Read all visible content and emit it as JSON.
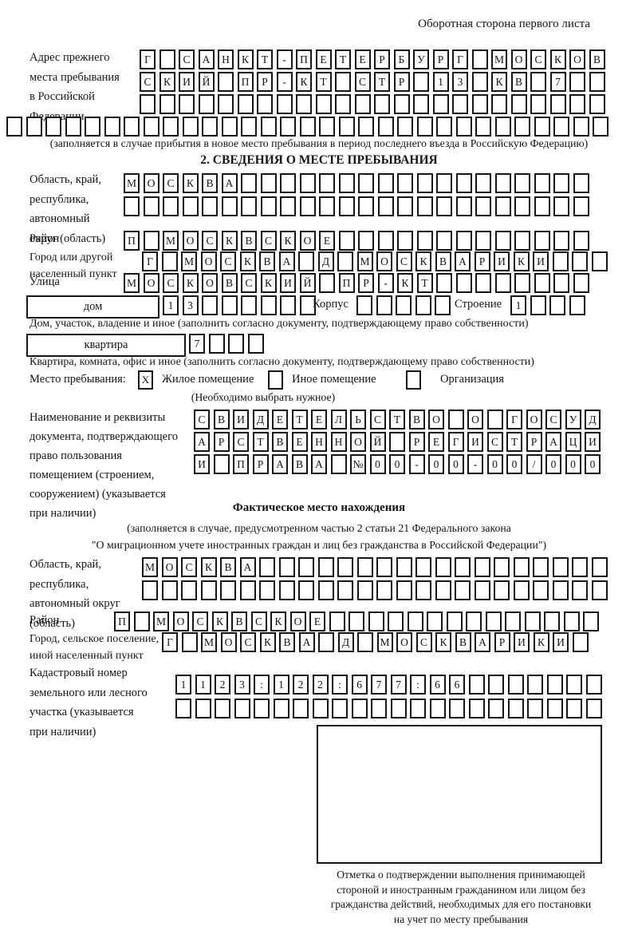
{
  "ink_color": "#151515",
  "header": {
    "note": "Оборотная сторона первого листа"
  },
  "prev_address": {
    "label_lines": [
      "Адрес прежнего",
      "места пребывания",
      "в Российской",
      "Федерации"
    ],
    "row1": [
      "Г",
      "",
      "С",
      "А",
      "Н",
      "К",
      "Т",
      "-",
      "П",
      "Е",
      "Т",
      "Е",
      "Р",
      "Б",
      "У",
      "Р",
      "Г",
      "",
      "М",
      "О",
      "С",
      "К",
      "О",
      "В"
    ],
    "row2": [
      "С",
      "К",
      "И",
      "Й",
      "",
      "П",
      "Р",
      "-",
      "К",
      "Т",
      "",
      "С",
      "Т",
      "Р",
      "",
      "1",
      "3",
      "",
      "К",
      "В",
      "",
      "7",
      "",
      ""
    ],
    "row3": [
      "",
      "",
      "",
      "",
      "",
      "",
      "",
      "",
      "",
      "",
      "",
      "",
      "",
      "",
      "",
      "",
      "",
      "",
      "",
      "",
      "",
      "",
      "",
      ""
    ],
    "row4": [
      "",
      "",
      "",
      "",
      "",
      "",
      "",
      "",
      "",
      "",
      "",
      "",
      "",
      "",
      "",
      "",
      "",
      "",
      "",
      "",
      "",
      "",
      "",
      "",
      "",
      "",
      "",
      "",
      "",
      "",
      ""
    ],
    "note": "(заполняется в случае прибытия в новое место пребывания в период последнего въезда в Российскую Федерацию)"
  },
  "section2": {
    "title": "2. СВЕДЕНИЯ О МЕСТЕ ПРЕБЫВАНИЯ",
    "region": {
      "label_lines": [
        "Область, край,",
        "республика,",
        "автономный",
        "округ (область)"
      ],
      "row1": [
        "М",
        "О",
        "С",
        "К",
        "В",
        "А",
        "",
        "",
        "",
        "",
        "",
        "",
        "",
        "",
        "",
        "",
        "",
        "",
        "",
        "",
        "",
        "",
        "",
        ""
      ],
      "row2": [
        "",
        "",
        "",
        "",
        "",
        "",
        "",
        "",
        "",
        "",
        "",
        "",
        "",
        "",
        "",
        "",
        "",
        "",
        "",
        "",
        "",
        "",
        "",
        ""
      ]
    },
    "district": {
      "label": "Район",
      "row": [
        "П",
        "",
        "М",
        "О",
        "С",
        "К",
        "В",
        "С",
        "К",
        "О",
        "Е",
        "",
        "",
        "",
        "",
        "",
        "",
        "",
        "",
        "",
        "",
        "",
        "",
        ""
      ]
    },
    "city": {
      "label_lines": [
        "Город или другой",
        "населенный пункт"
      ],
      "row": [
        "Г",
        "",
        "М",
        "О",
        "С",
        "К",
        "В",
        "А",
        "",
        "Д",
        "",
        "М",
        "О",
        "С",
        "К",
        "В",
        "А",
        "Р",
        "И",
        "К",
        "И",
        "",
        "",
        ""
      ]
    },
    "street": {
      "label": "Улица",
      "row": [
        "М",
        "О",
        "С",
        "К",
        "О",
        "В",
        "С",
        "К",
        "И",
        "Й",
        "",
        "П",
        "Р",
        "-",
        "К",
        "Т",
        "",
        "",
        "",
        "",
        "",
        "",
        "",
        ""
      ]
    },
    "house": {
      "box_label": "дом",
      "row": [
        "1",
        "3",
        "",
        "",
        "",
        "",
        "",
        ""
      ],
      "korpus_label": "Корпус",
      "korpus_row": [
        "",
        "",
        "",
        "",
        ""
      ],
      "stroenie_label": "Строение",
      "stroenie_row": [
        "1",
        "",
        "",
        ""
      ],
      "note": "Дом, участок, владение и иное (заполнить согласно документу, подтверждающему право собственности)"
    },
    "apartment": {
      "box_label": "квартира",
      "row": [
        "7",
        "",
        "",
        ""
      ],
      "note": "Квартира, комната, офис и иное (заполнить согласно документу, подтверждающему право собственности)"
    },
    "stay_place": {
      "label": "Место пребывания:",
      "options": [
        {
          "label": "Жилое помещение",
          "mark": "X"
        },
        {
          "label": "Иное помещение",
          "mark": ""
        },
        {
          "label": "Организация",
          "mark": ""
        }
      ],
      "note": "(Необходимо выбрать нужное)"
    },
    "doc": {
      "label_lines": [
        "Наименование и реквизиты",
        "документа, подтверждающего",
        "право пользования",
        "помещением (строением,",
        "сооружением) (указывается",
        "при наличии)"
      ],
      "row1": [
        "С",
        "В",
        "И",
        "Д",
        "Е",
        "Т",
        "Е",
        "Л",
        "Ь",
        "С",
        "Т",
        "В",
        "О",
        "",
        "О",
        "",
        "Г",
        "О",
        "С",
        "У",
        "Д"
      ],
      "row2": [
        "А",
        "Р",
        "С",
        "Т",
        "В",
        "Е",
        "Н",
        "Н",
        "О",
        "Й",
        "",
        "Р",
        "Е",
        "Г",
        "И",
        "С",
        "Т",
        "Р",
        "А",
        "Ц",
        "И"
      ],
      "row3": [
        "И",
        "",
        "П",
        "Р",
        "А",
        "В",
        "А",
        "",
        "№",
        "0",
        "0",
        "-",
        "0",
        "0",
        "-",
        "0",
        "0",
        "/",
        "0",
        "0",
        "0"
      ]
    }
  },
  "actual_location": {
    "title": "Фактическое место нахождения",
    "note_line1": "(заполняется в случае, предусмотренном частью 2 статьи 21 Федерального закона",
    "note_line2": "\"О миграционном учете иностранных граждан и лиц без гражданства в Российской Федерации\")",
    "region": {
      "label_lines": [
        "Область, край,",
        "республика,",
        "автономный округ",
        "(область)"
      ],
      "row1": [
        "М",
        "О",
        "С",
        "К",
        "В",
        "А",
        "",
        "",
        "",
        "",
        "",
        "",
        "",
        "",
        "",
        "",
        "",
        "",
        "",
        "",
        "",
        "",
        "",
        ""
      ],
      "row2": [
        "",
        "",
        "",
        "",
        "",
        "",
        "",
        "",
        "",
        "",
        "",
        "",
        "",
        "",
        "",
        "",
        "",
        "",
        "",
        "",
        "",
        "",
        "",
        ""
      ]
    },
    "district": {
      "label": "Район",
      "row": [
        "П",
        "",
        "М",
        "О",
        "С",
        "К",
        "В",
        "С",
        "К",
        "О",
        "Е",
        "",
        "",
        "",
        "",
        "",
        "",
        "",
        "",
        "",
        "",
        "",
        "",
        "",
        ""
      ]
    },
    "city": {
      "label_lines": [
        "Город, сельское поселение,",
        "иной населенный пункт"
      ],
      "row": [
        "Г",
        "",
        "М",
        "О",
        "С",
        "К",
        "В",
        "А",
        "",
        "Д",
        "",
        "М",
        "О",
        "С",
        "К",
        "В",
        "А",
        "Р",
        "И",
        "К",
        "И",
        ""
      ]
    },
    "cadastral": {
      "label_lines": [
        "Кадастровый номер",
        "земельного или лесного",
        "участка (указывается",
        "при наличии)"
      ],
      "row1": [
        "1",
        "1",
        "2",
        "3",
        ":",
        "1",
        "2",
        "2",
        ":",
        "6",
        "7",
        "7",
        ":",
        "6",
        "6",
        "",
        "",
        "",
        "",
        "",
        "",
        ""
      ],
      "row2": [
        "",
        "",
        "",
        "",
        "",
        "",
        "",
        "",
        "",
        "",
        "",
        "",
        "",
        "",
        "",
        "",
        "",
        "",
        "",
        "",
        "",
        ""
      ]
    },
    "stamp_note_lines": [
      "Отметка о подтверждении выполнения принимающей",
      "стороной и иностранным гражданином или лицом без",
      "гражданства действий, необходимых для его постановки",
      "на учет по месту пребывания"
    ]
  }
}
